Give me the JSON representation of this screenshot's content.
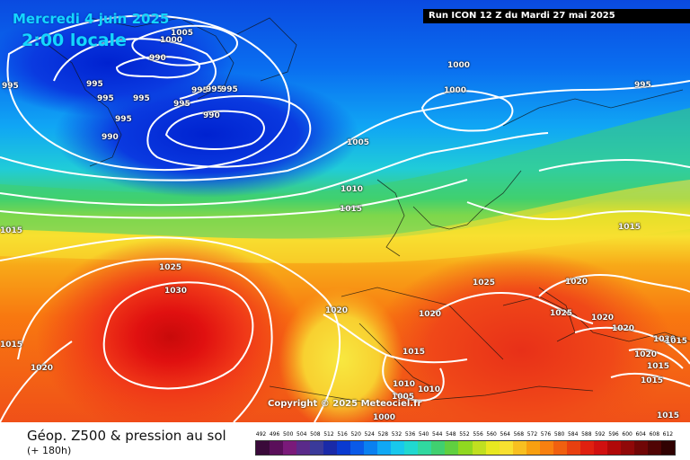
{
  "header": {
    "date": "Mercredi 4 juin 2025",
    "time": "2:00 locale",
    "run": "Run ICON 12 Z du Mardi 27 mai 2025"
  },
  "copyright": "Copyright © 2025 Meteociel.fr",
  "footer": {
    "title": "Géop. Z500 & pression au sol",
    "subtitle": "(+ 180h)"
  },
  "isobar_labels": [
    "1005",
    "1000",
    "990",
    "995",
    "995",
    "995",
    "995",
    "995",
    "995",
    "995",
    "995",
    "995",
    "990",
    "990",
    "1000",
    "1000",
    "995",
    "1005",
    "1010",
    "1015",
    "1025",
    "1030",
    "1020",
    "1015",
    "1020",
    "1025",
    "1020",
    "1025",
    "1020",
    "1015",
    "1015",
    "1020",
    "1020",
    "1020",
    "1020",
    "1010",
    "1005",
    "1010",
    "1015",
    "1015",
    "1000",
    "1015",
    "1015",
    "1015"
  ],
  "scale": {
    "labels": [
      "492",
      "496",
      "500",
      "504",
      "508",
      "512",
      "516",
      "520",
      "524",
      "528",
      "532",
      "536",
      "540",
      "544",
      "548",
      "552",
      "556",
      "560",
      "564",
      "568",
      "572",
      "576",
      "580",
      "584",
      "588",
      "592",
      "596",
      "600",
      "604",
      "608",
      "612"
    ],
    "colors": [
      "#3a0a3a",
      "#5a0f5a",
      "#7a1a7a",
      "#5a2a8a",
      "#3a3a9a",
      "#1a2aa8",
      "#0a3ad0",
      "#0a5ae8",
      "#0a80f0",
      "#10a8f4",
      "#18c8ec",
      "#20d8d0",
      "#30d8a0",
      "#40d070",
      "#60d040",
      "#90d820",
      "#c0e020",
      "#e8e820",
      "#f8e030",
      "#f8c020",
      "#f8a010",
      "#f88010",
      "#f06010",
      "#e84010",
      "#e02010",
      "#d01010",
      "#b00808",
      "#900808",
      "#700606",
      "#500404",
      "#300202"
    ]
  },
  "colors": {
    "header_text": "#14d7ff",
    "isobar_line": "#ffffff",
    "high_pressure_core": "#c80a0a",
    "low_pressure_core": "#0022d0"
  }
}
